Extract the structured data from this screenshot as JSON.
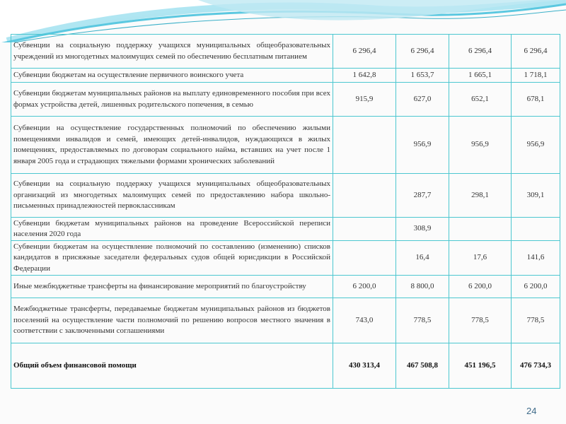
{
  "rows": [
    {
      "label": "Субвенции на социальную поддержку учащихся муниципальных общеобразовательных учреждений из многодетных малоимущих семей по обеспечению бесплатным питанием",
      "v": [
        "6 296,4",
        "6 296,4",
        "6 296,4",
        "6 296,4"
      ]
    },
    {
      "label": "Субвенции бюджетам на осуществление первичного воинского учета",
      "v": [
        "1 642,8",
        "1 653,7",
        "1 665,1",
        "1 718,1"
      ]
    },
    {
      "label": "Субвенции бюджетам муниципальных районов на выплату единовременного пособия при всех формах устройства детей, лишенных родительского попечения, в семью",
      "v": [
        "915,9",
        "627,0",
        "652,1",
        "678,1"
      ]
    },
    {
      "label": "Субвенции на осуществление государственных полномочий по обеспечению жилыми помещениями инвалидов и семей, имеющих детей-инвалидов, нуждающихся в жилых помещениях, предоставляемых по договорам социального найма, вставших на учет после 1 января 2005 года и страдающих тяжелыми формами хронических заболеваний",
      "v": [
        "",
        "956,9",
        "956,9",
        "956,9"
      ]
    },
    {
      "label": "Субвенции на социальную поддержку учащихся муниципальных общеобразовательных организаций из многодетных малоимущих семей по предоставлению набора школьно-письменных принадлежностей первоклассникам",
      "v": [
        "",
        "287,7",
        "298,1",
        "309,1"
      ]
    },
    {
      "label": "Субвенции бюджетам муниципальных районов на проведение Всероссийской переписи населения 2020 года",
      "v": [
        "",
        "308,9",
        "",
        ""
      ]
    },
    {
      "label": "Субвенции бюджетам на осуществление полномочий по составлению (изменению) списков кандидатов в присяжные заседатели федеральных судов общей юрисдикции в Российской Федерации",
      "v": [
        "",
        "16,4",
        "17,6",
        "141,6"
      ]
    },
    {
      "label": "Иные межбюджетные трансферты на финансирование мероприятий по благоустройству",
      "v": [
        "6 200,0",
        "8 800,0",
        "6 200,0",
        "6 200,0"
      ]
    },
    {
      "label": "Межбюджетные трансферты, передаваемые бюджетам муниципальных районов из бюджетов поселений на осуществление части полномочий по решению вопросов местного значения в соответствии с заключенными соглашениями",
      "v": [
        "743,0",
        "778,5",
        "778,5",
        "778,5"
      ]
    },
    {
      "label": "Общий объем финансовой помощи",
      "v": [
        "430 313,4",
        "467 508,8",
        "451 196,5",
        "476 734,3"
      ]
    }
  ],
  "page_number": "24",
  "colors": {
    "border": "#4cc7d0",
    "accent": "#5bc8e0"
  }
}
